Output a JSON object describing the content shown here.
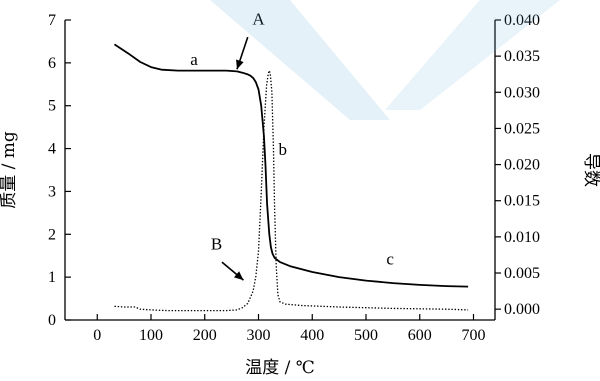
{
  "chart_data": {
    "type": "line",
    "xlabel": "温度 / ℃",
    "ylabel_left": "质量 / mg",
    "ylabel_right": "导数",
    "x_ticks": [
      "0",
      "100",
      "200",
      "300",
      "400",
      "500",
      "600",
      "700"
    ],
    "y_left_ticks": [
      "0",
      "1",
      "2",
      "3",
      "4",
      "5",
      "6",
      "7"
    ],
    "y_right_ticks": [
      "0.000",
      "0.005",
      "0.010",
      "0.015",
      "0.020",
      "0.025",
      "0.030",
      "0.035",
      "0.040"
    ],
    "xlim": [
      -60,
      740
    ],
    "ylim_left": [
      0,
      7
    ],
    "ylim_right": [
      -0.0015,
      0.04
    ],
    "series": [
      {
        "axis": "left",
        "style": "solid",
        "color": "#000000",
        "x": [
          32,
          60,
          80,
          100,
          120,
          150,
          200,
          240,
          260,
          270,
          280,
          285,
          290,
          295,
          300,
          305,
          310,
          313,
          316,
          320,
          323,
          326,
          330,
          340,
          360,
          400,
          450,
          500,
          550,
          600,
          650,
          690
        ],
        "y": [
          6.43,
          6.2,
          6.02,
          5.9,
          5.84,
          5.82,
          5.82,
          5.82,
          5.8,
          5.77,
          5.73,
          5.7,
          5.65,
          5.55,
          5.38,
          5.0,
          4.3,
          3.6,
          2.7,
          2.0,
          1.7,
          1.55,
          1.45,
          1.35,
          1.25,
          1.12,
          1.0,
          0.92,
          0.86,
          0.82,
          0.79,
          0.78
        ]
      },
      {
        "axis": "right",
        "style": "dotted",
        "color": "#000000",
        "x": [
          32,
          50,
          70,
          80,
          100,
          130,
          160,
          200,
          240,
          260,
          270,
          280,
          290,
          295,
          300,
          305,
          310,
          315,
          318,
          320,
          322,
          325,
          328,
          330,
          333,
          336,
          340,
          350,
          380,
          450,
          550,
          650,
          690
        ],
        "y": [
          0.0004,
          0.0003,
          0.0003,
          0.0,
          -0.0001,
          -0.0002,
          -0.0002,
          -0.0002,
          -0.0002,
          -0.0001,
          0.0002,
          0.0008,
          0.0025,
          0.0045,
          0.008,
          0.016,
          0.025,
          0.031,
          0.0325,
          0.033,
          0.0325,
          0.03,
          0.022,
          0.014,
          0.006,
          0.002,
          0.001,
          0.0007,
          0.0005,
          0.0003,
          0.0001,
          0.0,
          -0.0001
        ]
      }
    ],
    "annotations": [
      {
        "label": "a",
        "x": 180,
        "y_left": 5.95
      },
      {
        "label": "A",
        "x": 300,
        "y_left": 6.9
      },
      {
        "label": "b",
        "x": 345,
        "y_left": 3.85
      },
      {
        "label": "B",
        "x": 222,
        "y_left": 1.65
      },
      {
        "label": "c",
        "x": 545,
        "y_left": 1.3
      }
    ],
    "arrows": [
      {
        "target": "A",
        "from_x": 280,
        "from_y_left": 6.6,
        "to_x": 260,
        "to_y_left": 5.85
      },
      {
        "target": "B",
        "from_x": 232,
        "from_y_left": 1.35,
        "to_x": 272,
        "to_y_left": 0.93
      }
    ]
  }
}
